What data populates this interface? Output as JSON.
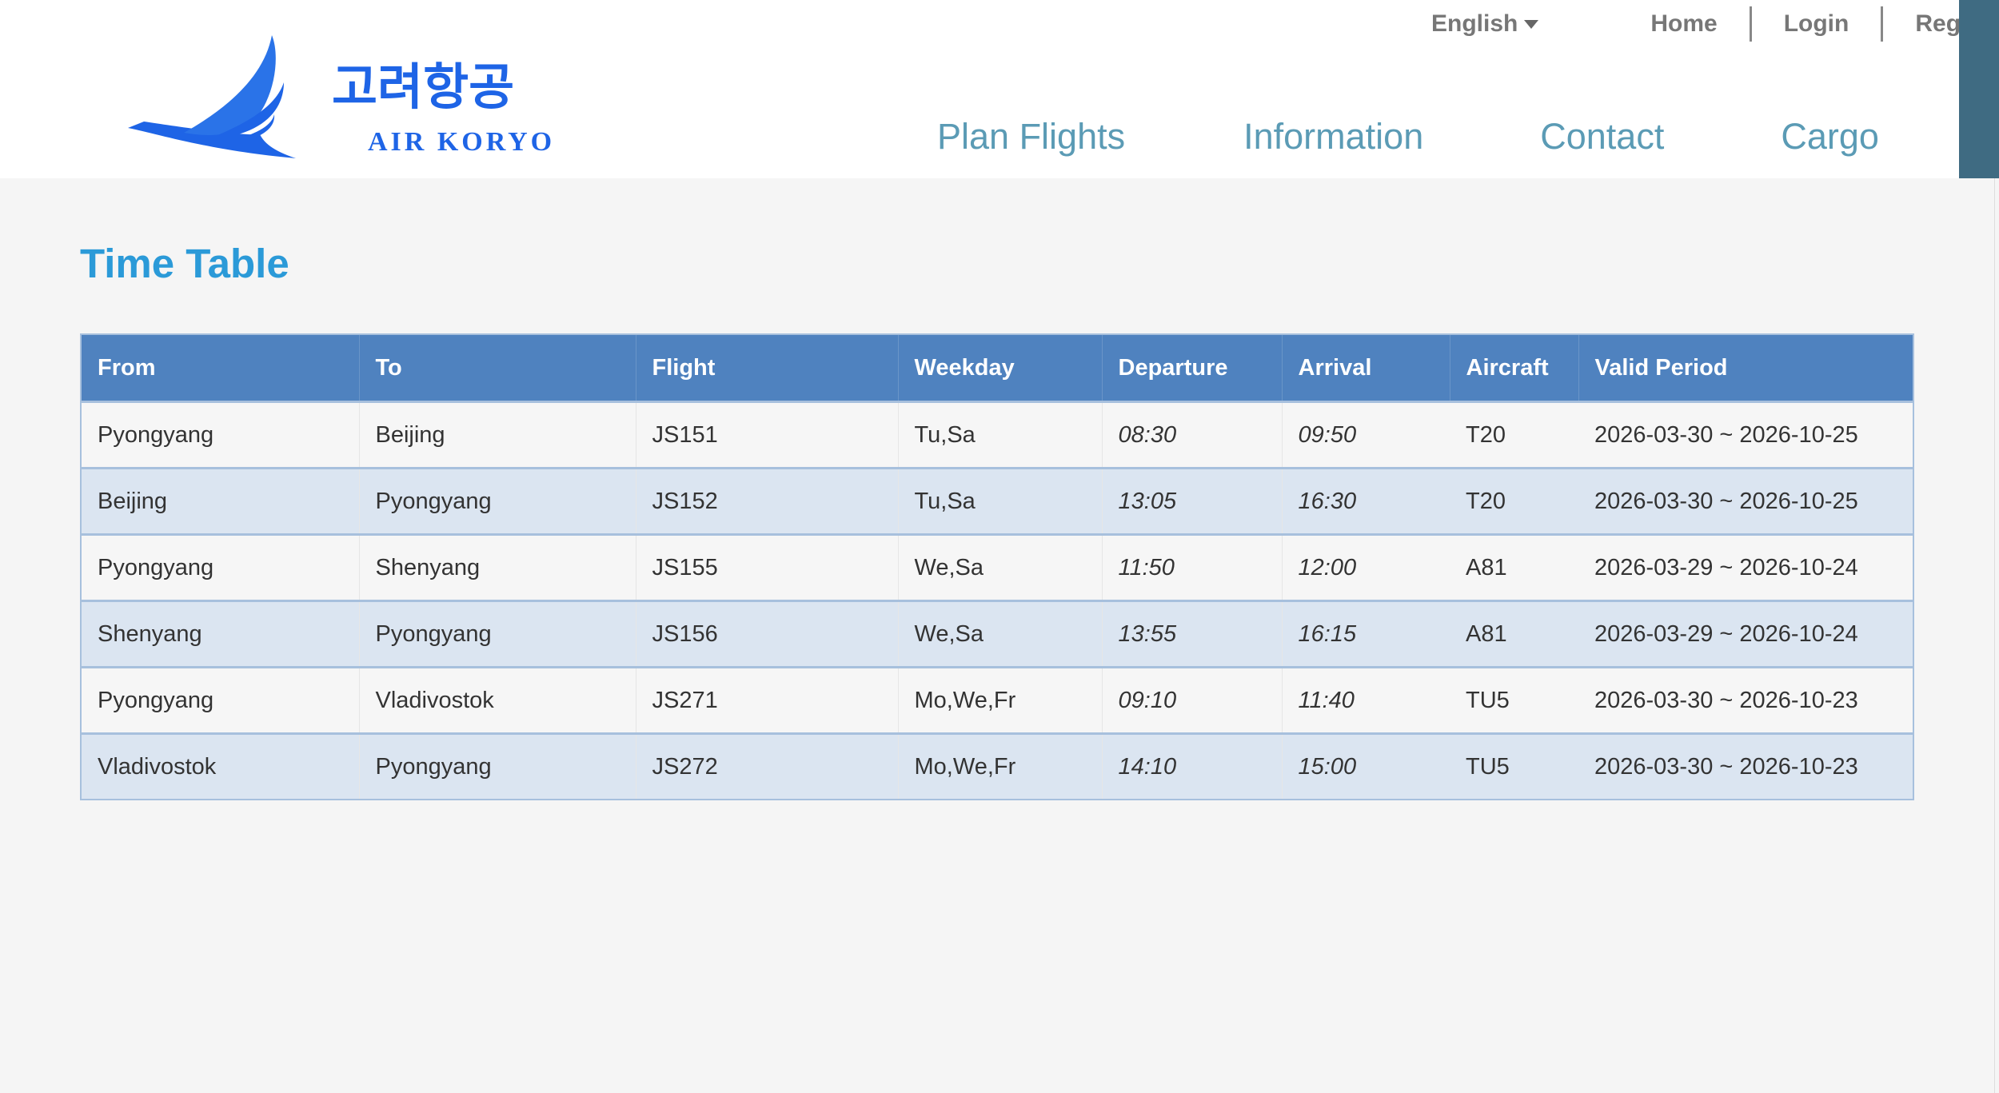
{
  "brand": {
    "name_ko": "고려항공",
    "name_en": "AIR KORYO",
    "color": "#1e64e6"
  },
  "toplinks": {
    "language": "English",
    "home": "Home",
    "login": "Login",
    "register": "Register"
  },
  "nav": [
    "Plan Flights",
    "Information",
    "Contact",
    "Cargo"
  ],
  "page_title": "Time Table",
  "table": {
    "headers": [
      "From",
      "To",
      "Flight",
      "Weekday",
      "Departure",
      "Arrival",
      "Aircraft",
      "Valid Period"
    ],
    "rows": [
      [
        "Pyongyang",
        "Beijing",
        "JS151",
        "Tu,Sa",
        "08:30",
        "09:50",
        "T20",
        "2026-03-30 ~ 2026-10-25"
      ],
      [
        "Beijing",
        "Pyongyang",
        "JS152",
        "Tu,Sa",
        "13:05",
        "16:30",
        "T20",
        "2026-03-30 ~ 2026-10-25"
      ],
      [
        "Pyongyang",
        "Shenyang",
        "JS155",
        "We,Sa",
        "11:50",
        "12:00",
        "A81",
        "2026-03-29 ~ 2026-10-24"
      ],
      [
        "Shenyang",
        "Pyongyang",
        "JS156",
        "We,Sa",
        "13:55",
        "16:15",
        "A81",
        "2026-03-29 ~ 2026-10-24"
      ],
      [
        "Pyongyang",
        "Vladivostok",
        "JS271",
        "Mo,We,Fr",
        "09:10",
        "11:40",
        "TU5",
        "2026-03-30 ~ 2026-10-23"
      ],
      [
        "Vladivostok",
        "Pyongyang",
        "JS272",
        "Mo,We,Fr",
        "14:10",
        "15:00",
        "TU5",
        "2026-03-30 ~ 2026-10-23"
      ]
    ]
  }
}
